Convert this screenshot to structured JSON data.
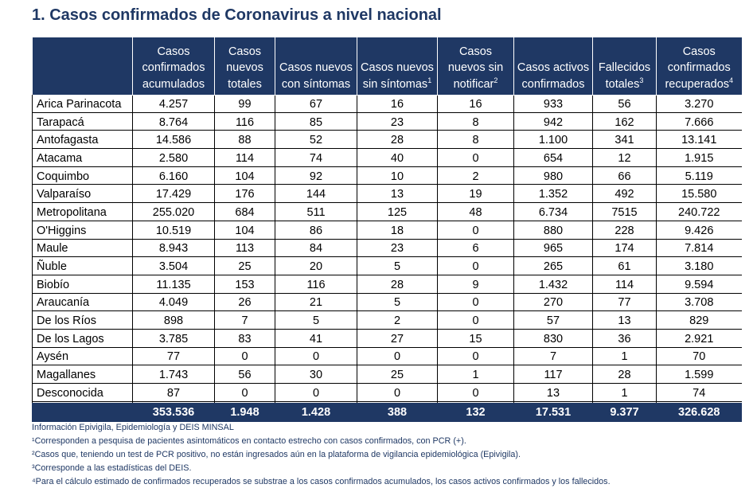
{
  "title": "1. Casos confirmados de Coronavirus a nivel nacional",
  "headers": [
    {
      "text": "",
      "sup": ""
    },
    {
      "text": "Casos confirmados acumulados",
      "sup": ""
    },
    {
      "text": "Casos nuevos totales",
      "sup": ""
    },
    {
      "text": "Casos nuevos con síntomas",
      "sup": ""
    },
    {
      "text": "Casos nuevos sin síntomas",
      "sup": "1"
    },
    {
      "text": "Casos nuevos sin notificar",
      "sup": "2"
    },
    {
      "text": "Casos activos confirmados",
      "sup": ""
    },
    {
      "text": "Fallecidos totales",
      "sup": "3"
    },
    {
      "text": "Casos confirmados recuperados",
      "sup": "4"
    }
  ],
  "rows": [
    [
      "Arica Parinacota",
      "4.257",
      "99",
      "67",
      "16",
      "16",
      "933",
      "56",
      "3.270"
    ],
    [
      "Tarapacá",
      "8.764",
      "116",
      "85",
      "23",
      "8",
      "942",
      "162",
      "7.666"
    ],
    [
      "Antofagasta",
      "14.586",
      "88",
      "52",
      "28",
      "8",
      "1.100",
      "341",
      "13.141"
    ],
    [
      "Atacama",
      "2.580",
      "114",
      "74",
      "40",
      "0",
      "654",
      "12",
      "1.915"
    ],
    [
      "Coquimbo",
      "6.160",
      "104",
      "92",
      "10",
      "2",
      "980",
      "66",
      "5.119"
    ],
    [
      "Valparaíso",
      "17.429",
      "176",
      "144",
      "13",
      "19",
      "1.352",
      "492",
      "15.580"
    ],
    [
      "Metropolitana",
      "255.020",
      "684",
      "511",
      "125",
      "48",
      "6.734",
      "7515",
      "240.722"
    ],
    [
      "O'Higgins",
      "10.519",
      "104",
      "86",
      "18",
      "0",
      "880",
      "228",
      "9.426"
    ],
    [
      "Maule",
      "8.943",
      "113",
      "84",
      "23",
      "6",
      "965",
      "174",
      "7.814"
    ],
    [
      "Ñuble",
      "3.504",
      "25",
      "20",
      "5",
      "0",
      "265",
      "61",
      "3.180"
    ],
    [
      "Biobío",
      "11.135",
      "153",
      "116",
      "28",
      "9",
      "1.432",
      "114",
      "9.594"
    ],
    [
      "Araucanía",
      "4.049",
      "26",
      "21",
      "5",
      "0",
      "270",
      "77",
      "3.708"
    ],
    [
      "De los Ríos",
      "898",
      "7",
      "5",
      "2",
      "0",
      "57",
      "13",
      "829"
    ],
    [
      "De los Lagos",
      "3.785",
      "83",
      "41",
      "27",
      "15",
      "830",
      "36",
      "2.921"
    ],
    [
      "Aysén",
      "77",
      "0",
      "0",
      "0",
      "0",
      "7",
      "1",
      "70"
    ],
    [
      "Magallanes",
      "1.743",
      "56",
      "30",
      "25",
      "1",
      "117",
      "28",
      "1.599"
    ],
    [
      "Desconocida",
      "87",
      "0",
      "0",
      "0",
      "0",
      "13",
      "1",
      "74"
    ]
  ],
  "totals": [
    "",
    "353.536",
    "1.948",
    "1.428",
    "388",
    "132",
    "17.531",
    "9.377",
    "326.628"
  ],
  "notes": [
    "Información Epivigila, Epidemiología y DEIS MINSAL",
    "¹Corresponden a pesquisa de pacientes asintomáticos en contacto estrecho con casos confirmados, con PCR (+).",
    "²Casos que, teniendo un test de PCR positivo, no están ingresados aún en la plataforma de vigilancia epidemiológica (Epivigila).",
    "³Corresponde a las estadísticas del DEIS.",
    "⁴Para el cálculo estimado de confirmados recuperados se substrae a los casos confirmados acumulados, los casos activos confirmados y los fallecidos."
  ],
  "colors": {
    "header_bg": "#1f3864",
    "title": "#1f3864",
    "text": "#000000"
  }
}
